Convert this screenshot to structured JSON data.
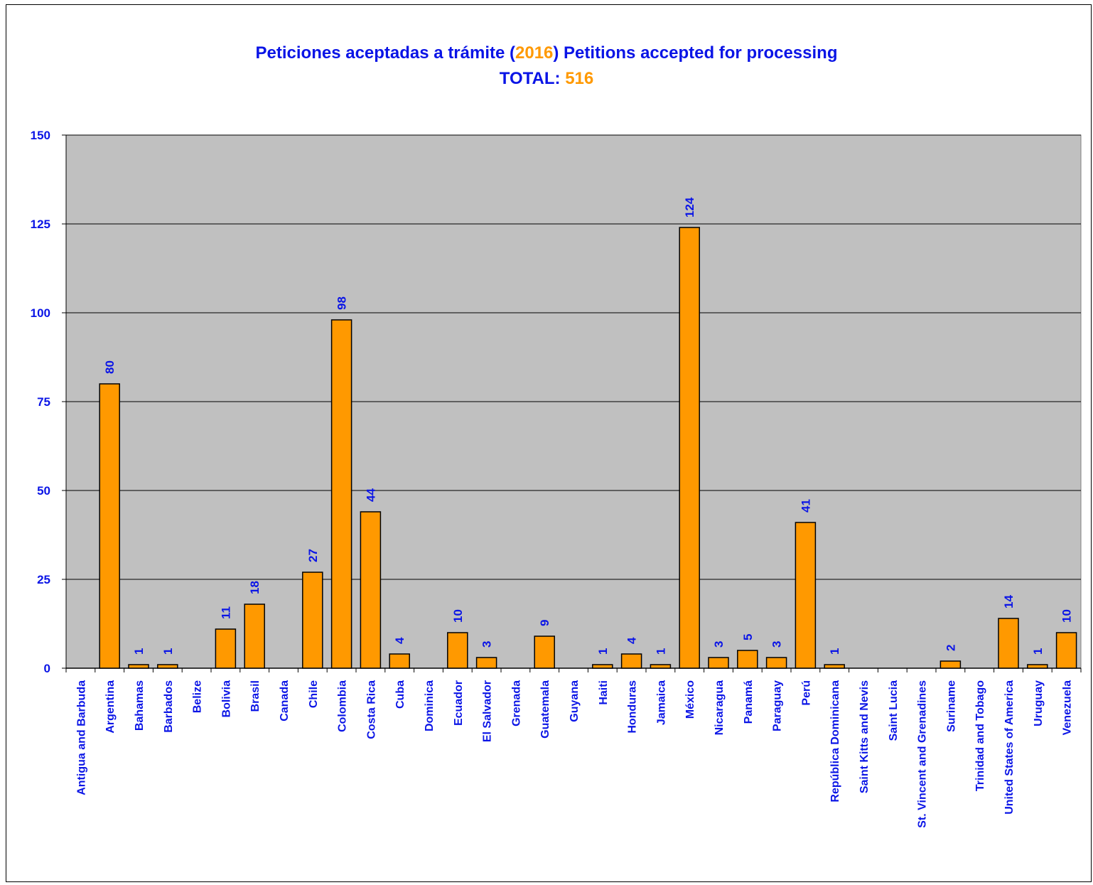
{
  "title": {
    "line1_before": "Peticiones aceptadas a trámite (",
    "line1_year": "2016",
    "line1_after": ") Petitions accepted for processing",
    "line2_label": "TOTAL: ",
    "line2_total": "516"
  },
  "colors": {
    "title": "#0a14e6",
    "highlight": "#ff9900",
    "bar": "#ff9900",
    "plot_background": "#c0c0c0",
    "labels": "#0a14e6"
  },
  "chart_data": {
    "type": "bar",
    "categories": [
      "Antigua and Barbuda",
      "Argentina",
      "Bahamas",
      "Barbados",
      "Belize",
      "Bolivia",
      "Brasil",
      "Canada",
      "Chile",
      "Colombia",
      "Costa Rica",
      "Cuba",
      "Dominica",
      "Ecuador",
      "El Salvador",
      "Grenada",
      "Guatemala",
      "Guyana",
      "Haiti",
      "Honduras",
      "Jamaica",
      "México",
      "Nicaragua",
      "Panamá",
      "Paraguay",
      "Perú",
      "República Dominicana",
      "Saint Kitts and Nevis",
      "Saint Lucia",
      "St. Vincent and Grenadines",
      "Suriname",
      "Trinidad and Tobago",
      "United States of America",
      "Uruguay",
      "Venezuela"
    ],
    "values": [
      0,
      80,
      1,
      1,
      0,
      11,
      18,
      0,
      27,
      98,
      44,
      4,
      0,
      10,
      3,
      0,
      9,
      0,
      1,
      4,
      1,
      124,
      3,
      5,
      3,
      41,
      1,
      0,
      0,
      0,
      2,
      0,
      14,
      1,
      10
    ],
    "data_labels": [
      "",
      "80",
      "1",
      "1",
      "",
      "11",
      "18",
      "",
      "27",
      "98",
      "44",
      "4",
      "",
      "10",
      "3",
      "",
      "9",
      "",
      "1",
      "4",
      "1",
      "124",
      "3",
      "5",
      "3",
      "41",
      "1",
      "",
      "",
      "",
      "2",
      "",
      "14",
      "1",
      "10"
    ],
    "yticks": [
      0,
      25,
      50,
      75,
      100,
      125,
      150
    ],
    "ylim": [
      0,
      150
    ],
    "grid": true,
    "legend": "none",
    "xlabel": "",
    "ylabel": ""
  }
}
